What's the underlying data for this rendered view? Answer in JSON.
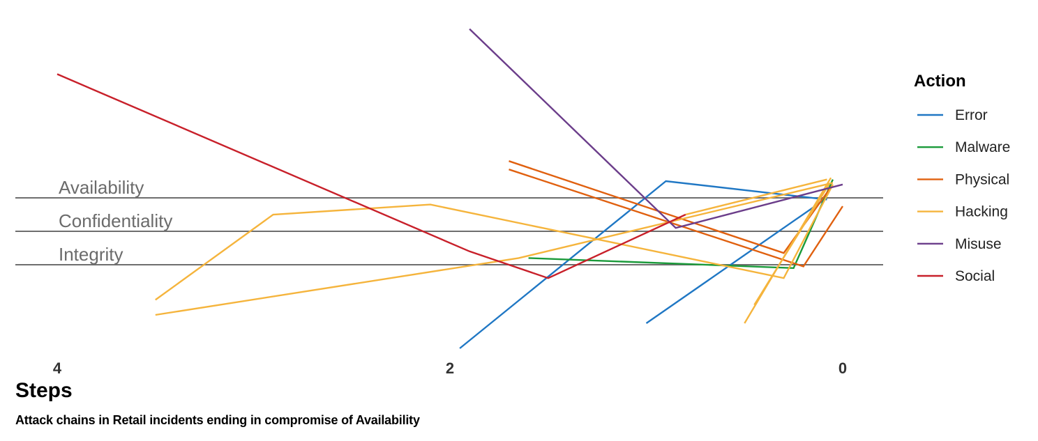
{
  "chart_data": {
    "type": "line",
    "subtitle": "Attack chains in Retail incidents ending in compromise of Availability",
    "xlabel": "Steps",
    "x_ticks": [
      "4",
      "2",
      "0"
    ],
    "xlim": [
      4,
      0
    ],
    "y_categories": [
      "Availability",
      "Confidentiality",
      "Integrity"
    ],
    "legend_title": "Action",
    "legend": [
      {
        "name": "Error",
        "color": "#1f77c4"
      },
      {
        "name": "Malware",
        "color": "#1a9a3a"
      },
      {
        "name": "Physical",
        "color": "#e0600f"
      },
      {
        "name": "Hacking",
        "color": "#f5b43c"
      },
      {
        "name": "Misuse",
        "color": "#6b3d8a"
      },
      {
        "name": "Social",
        "color": "#c8202a"
      }
    ],
    "y_scale_note": "y = 1 Availability, 2 Confidentiality, 3 Integrity",
    "series": [
      {
        "action": "Error",
        "points": [
          [
            1.95,
            5.5
          ],
          [
            0.9,
            0.5
          ],
          [
            0.08,
            1.05
          ]
        ]
      },
      {
        "action": "Error",
        "points": [
          [
            1.0,
            4.75
          ],
          [
            0.08,
            1.0
          ]
        ]
      },
      {
        "action": "Malware",
        "points": [
          [
            1.6,
            2.8
          ],
          [
            0.25,
            3.1
          ],
          [
            0.05,
            0.45
          ]
        ]
      },
      {
        "action": "Physical",
        "points": [
          [
            1.7,
            -0.1
          ],
          [
            0.3,
            2.65
          ],
          [
            0.05,
            0.6
          ]
        ]
      },
      {
        "action": "Physical",
        "points": [
          [
            1.7,
            0.15
          ],
          [
            0.2,
            3.05
          ],
          [
            0.0,
            1.25
          ]
        ]
      },
      {
        "action": "Hacking",
        "points": [
          [
            3.5,
            4.05
          ],
          [
            2.9,
            1.5
          ],
          [
            2.1,
            1.2
          ],
          [
            0.3,
            3.4
          ],
          [
            0.05,
            0.6
          ]
        ]
      },
      {
        "action": "Hacking",
        "points": [
          [
            3.5,
            4.5
          ],
          [
            1.65,
            2.8
          ],
          [
            0.05,
            0.55
          ]
        ]
      },
      {
        "action": "Hacking",
        "points": [
          [
            0.8,
            1.5
          ],
          [
            0.08,
            0.45
          ]
        ]
      },
      {
        "action": "Hacking",
        "points": [
          [
            0.45,
            4.2
          ],
          [
            0.07,
            0.6
          ]
        ]
      },
      {
        "action": "Hacking",
        "points": [
          [
            0.5,
            4.75
          ],
          [
            0.06,
            0.4
          ]
        ]
      },
      {
        "action": "Misuse",
        "points": [
          [
            1.9,
            -4.05
          ],
          [
            0.85,
            1.9
          ],
          [
            0.0,
            0.6
          ]
        ]
      },
      {
        "action": "Social",
        "points": [
          [
            4.0,
            -2.7
          ],
          [
            1.9,
            2.6
          ],
          [
            1.5,
            3.4
          ],
          [
            0.8,
            1.5
          ]
        ]
      }
    ]
  }
}
